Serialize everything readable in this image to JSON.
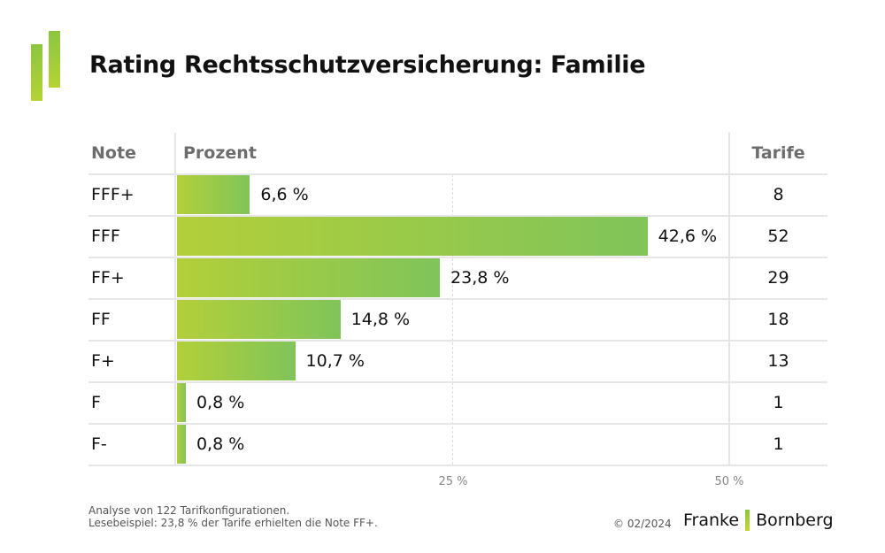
{
  "title": "Rating Rechtsschutzversicherung: Familie",
  "headers": {
    "note": "Note",
    "percent": "Prozent",
    "tarife": "Tarife"
  },
  "chart_data": {
    "type": "bar",
    "orientation": "horizontal",
    "title": "Rating Rechtsschutzversicherung: Familie",
    "categories": [
      "FFF+",
      "FFF",
      "FF+",
      "FF",
      "F+",
      "F",
      "F-"
    ],
    "values": [
      6.6,
      42.6,
      23.8,
      14.8,
      10.7,
      0.8,
      0.8
    ],
    "value_labels": [
      "6,6 %",
      "42,6 %",
      "23,8 %",
      "14,8 %",
      "10,7 %",
      "0,8 %",
      "0,8 %"
    ],
    "tarife": [
      "8",
      "52",
      "29",
      "18",
      "13",
      "1",
      "1"
    ],
    "xlim": [
      0,
      50
    ],
    "ticks": [
      {
        "value": 25,
        "label": "25 %"
      },
      {
        "value": 50,
        "label": "50 %"
      }
    ],
    "bar_gradient": [
      "#b3cf3a",
      "#80c45a"
    ]
  },
  "footer": {
    "line1": "Analyse von 122 Tarifkonfigurationen.",
    "line2": "Lesebeispiel: 23,8 % der Tarife erhielten die Note FF+.",
    "copyright": "© 02/2024",
    "brand_left": "Franke",
    "brand_right": "Bornberg"
  }
}
